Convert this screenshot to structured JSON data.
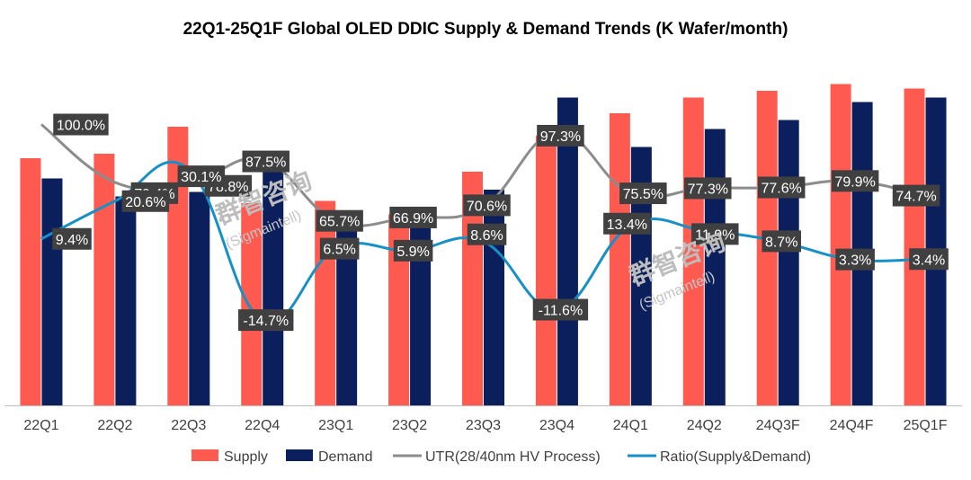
{
  "chart_data": {
    "type": "bar",
    "title": "22Q1-25Q1F Global OLED DDIC Supply & Demand Trends (K Wafer/month)",
    "categories": [
      "22Q1",
      "22Q2",
      "22Q3",
      "22Q4",
      "23Q1",
      "23Q2",
      "23Q3",
      "23Q4",
      "24Q1",
      "24Q2",
      "24Q3F",
      "24Q4F",
      "25Q1F"
    ],
    "series": [
      {
        "name": "Supply",
        "kind": "bar",
        "color": "#FF5A50",
        "values": [
          55,
          56,
          62,
          45,
          45.5,
          42.5,
          52,
          60,
          65,
          68.5,
          70,
          71.5,
          70.5
        ]
      },
      {
        "name": "Demand",
        "kind": "bar",
        "color": "#0B1F5C",
        "values": [
          50.5,
          46.5,
          47.5,
          55.5,
          42.5,
          40,
          48,
          68.5,
          57.5,
          61.5,
          63.5,
          67.5,
          68.5
        ]
      },
      {
        "name": "UTR(28/40nm HV Process)",
        "kind": "line",
        "color": "#8C8C8C",
        "values": [
          100.0,
          79.4,
          78.8,
          87.5,
          65.7,
          66.9,
          70.6,
          97.3,
          75.5,
          77.3,
          77.6,
          79.9,
          74.7
        ],
        "labels": [
          "100.0%",
          "79.4%",
          "78.8%",
          "87.5%",
          "65.7%",
          "66.9%",
          "70.6%",
          "97.3%",
          "75.5%",
          "77.3%",
          "77.6%",
          "79.9%",
          "74.7%"
        ]
      },
      {
        "name": "Ratio(Supply&Demand)",
        "kind": "line",
        "color": "#1591C8",
        "values": [
          9.4,
          20.6,
          30.1,
          -14.7,
          6.5,
          5.9,
          8.6,
          -11.6,
          13.4,
          11.9,
          8.7,
          3.3,
          3.4
        ],
        "labels": [
          "9.4%",
          "20.6%",
          "30.1%",
          "-14.7%",
          "6.5%",
          "5.9%",
          "8.6%",
          "-11.6%",
          "13.4%",
          "11.9%",
          "8.7%",
          "3.3%",
          "3.4%"
        ]
      }
    ],
    "bar_axis": {
      "min": 0,
      "max": 75
    },
    "utr_axis": {
      "min": 0,
      "max": 120
    },
    "ratio_axis": {
      "min": -40,
      "max": 60
    },
    "legend": "bottom",
    "watermark": [
      "群智咨询",
      "(Sigmaintell)"
    ]
  }
}
